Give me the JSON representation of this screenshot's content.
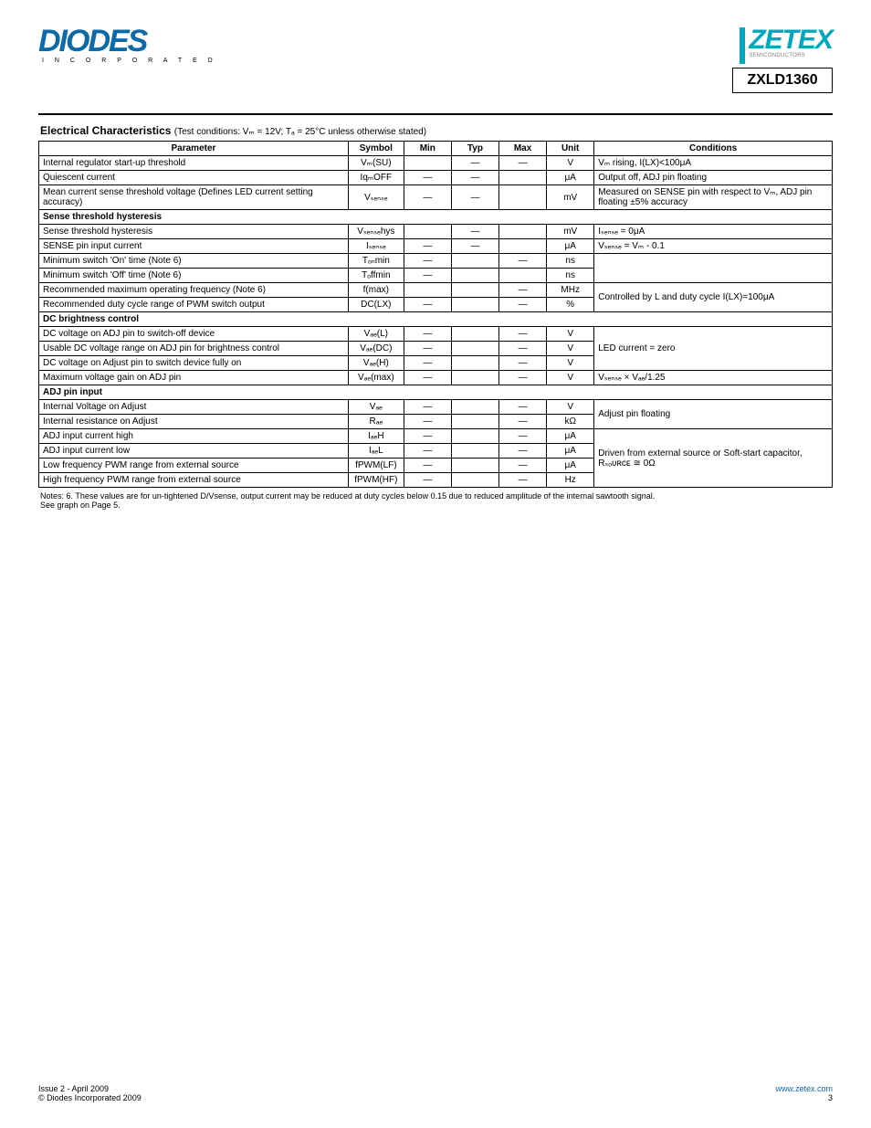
{
  "header": {
    "diodes_wordmark": "DIODES",
    "diodes_sub": "I N C O R P O R A T E D",
    "zetex_text": "ZETEX",
    "zetex_sub": "SEMICONDUCTORS",
    "part_number": "ZXLD1360"
  },
  "section": {
    "title": "Electrical Characteristics",
    "conditions": "(Test conditions: Vₘ = 12V; Tₐ = 25°C unless otherwise stated)"
  },
  "table": {
    "columns": [
      "Parameter",
      "Symbol",
      "Min",
      "Typ",
      "Max",
      "Unit",
      "Conditions"
    ],
    "groups": [
      {
        "rows": [
          {
            "param": "Internal regulator start-up threshold",
            "sym": "Vₘ(SU)",
            "min": "",
            "typ": "—",
            "max": "—",
            "unit": "V",
            "cond": "Vₘ rising, I(LX)<100μA"
          },
          {
            "param": "Quiescent current",
            "sym": "IqₘOFF",
            "min": "—",
            "typ": "—",
            "max": "",
            "unit": "μA",
            "cond": "Output off, ADJ pin floating"
          },
          {
            "param": "Mean current sense threshold voltage (Defines LED current setting accuracy)",
            "sym": "Vₛₑₙₛₑ",
            "min": "—",
            "typ": "—",
            "max": "",
            "unit": "mV",
            "cond": "Measured on SENSE pin with respect to Vₘ, ADJ pin floating ±5% accuracy"
          }
        ]
      },
      {
        "label": "Sense threshold hysteresis",
        "rows": [
          {
            "param": "Sense threshold hysteresis",
            "sym": "Vₛₑₙₛₑhys",
            "min": "",
            "typ": "—",
            "max": "",
            "unit": "mV",
            "cond": "Iₛₑₙₛₑ = 0μA"
          },
          {
            "param": "SENSE pin input current",
            "sym": "Iₛₑₙₛₑ",
            "min": "—",
            "typ": "—",
            "max": "",
            "unit": "μA",
            "cond": "Vₛₑₙₛₑ = Vₘ - 0.1"
          }
        ]
      },
      {
        "rows": [
          {
            "param": "Minimum switch 'On' time (Note 6)",
            "sym": "Tₒₙmin",
            "min": "—",
            "typ": "",
            "max": "—",
            "unit": "ns",
            "cond": "",
            "cond_rowspan": 2
          },
          {
            "param": "Minimum switch 'Off' time (Note 6)",
            "sym": "Tₒffmin",
            "min": "—",
            "typ": "",
            "max": "",
            "unit": "ns",
            "cond": null
          },
          {
            "param": "Recommended maximum operating frequency (Note 6)",
            "sym": "f(max)",
            "min": "",
            "typ": "",
            "max": "—",
            "unit": "MHz",
            "cond": "Controlled by L and duty cycle I(LX)=100μA",
            "cond_rowspan": 2
          },
          {
            "param": "Recommended duty cycle range of PWM switch output",
            "sym": "DC(LX)",
            "min": "—",
            "typ": "",
            "max": "—",
            "unit": "%",
            "cond": null
          }
        ]
      },
      {
        "label": "DC brightness control",
        "rows": [
          {
            "param": "DC voltage on ADJ pin to switch-off device",
            "sym": "Vₐₑ(L)",
            "min": "—",
            "typ": "",
            "max": "—",
            "unit": "V",
            "cond": "LED current = zero",
            "cond_rowspan": 3
          },
          {
            "param": "Usable DC voltage range on ADJ pin for brightness control",
            "sym": "Vₐₑ(DC)",
            "min": "—",
            "typ": "",
            "max": "—",
            "unit": "V",
            "cond": null
          },
          {
            "param": "DC voltage on Adjust pin to switch device fully on",
            "sym": "Vₐₑ(H)",
            "min": "—",
            "typ": "",
            "max": "—",
            "unit": "V",
            "cond": null
          },
          {
            "param": "Maximum voltage gain on ADJ pin",
            "sym": "Vₐₑ(max)",
            "min": "—",
            "typ": "",
            "max": "—",
            "unit": "V",
            "cond": "Vₛₑₙₛₑ × Vₐₑ/1.25"
          }
        ]
      },
      {
        "label": "ADJ pin input",
        "rows": [
          {
            "param": "Internal Voltage on Adjust",
            "sym": "Vₐₑ",
            "min": "—",
            "typ": "",
            "max": "—",
            "unit": "V",
            "cond": "Adjust pin floating",
            "cond_rowspan": 2
          },
          {
            "param": "Internal resistance on Adjust",
            "sym": "Rₐₑ",
            "min": "—",
            "typ": "",
            "max": "—",
            "unit": "kΩ",
            "cond": null
          },
          {
            "param": "ADJ input current high",
            "sym": "IₐₑH",
            "min": "—",
            "typ": "",
            "max": "—",
            "unit": "μA",
            "cond": "Driven from external source or Soft-start capacitor, Rₛₒᴜʀᴄᴇ ≅ 0Ω",
            "cond_rowspan": 4
          },
          {
            "param": "ADJ input current low",
            "sym": "IₐₑL",
            "min": "—",
            "typ": "",
            "max": "—",
            "unit": "μA",
            "cond": null
          },
          {
            "param": "Low frequency PWM range from external source",
            "sym": "fPWM(LF)",
            "min": "—",
            "typ": "",
            "max": "—",
            "unit": "μA",
            "cond": null
          },
          {
            "param": "High frequency PWM range from external source",
            "sym": "fPWM(HF)",
            "min": "—",
            "typ": "",
            "max": "—",
            "unit": "Hz",
            "cond": null
          }
        ]
      }
    ]
  },
  "notes": {
    "line1": "Notes: 6. These values are for un-tightened D/Vsense, output current may be reduced at duty cycles below 0.15 due to reduced amplitude of the internal sawtooth signal.",
    "line2_prefix": "See graph on Page 5."
  },
  "footer": {
    "left_top": "Issue 2 - April 2009",
    "left_bottom_prefix": "© Diodes Incorporated 2009",
    "right_link": "www.zetex.com",
    "right_page": "3"
  }
}
